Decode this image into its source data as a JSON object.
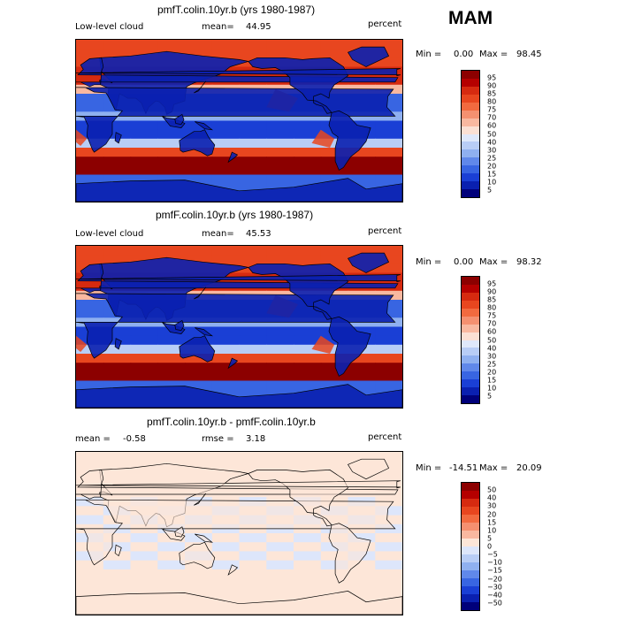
{
  "season": "MAM",
  "panels": [
    {
      "title": "pmfT.colin.10yr.b (yrs 1980-1987)",
      "left_label": "Low-level cloud",
      "mean_label": "mean=",
      "mean_value": "44.95",
      "units": "percent",
      "min_label": "Min =",
      "min_value": "0.00",
      "max_label": "Max =",
      "max_value": "98.45",
      "colorbar_ticks": [
        "95",
        "90",
        "85",
        "80",
        "75",
        "70",
        "60",
        "50",
        "40",
        "30",
        "25",
        "20",
        "15",
        "10",
        "5"
      ],
      "colorbar_colors": [
        "#8c0000",
        "#b50000",
        "#d62a10",
        "#e8461f",
        "#f26a3f",
        "#f59070",
        "#f9b8a0",
        "#fbe0d4",
        "#dfe8fb",
        "#b8cdf6",
        "#8fb0f0",
        "#6088ea",
        "#3865e2",
        "#1a3fd5",
        "#0a20b0",
        "#00007a"
      ],
      "kind": "clouds"
    },
    {
      "title": "pmfF.colin.10yr.b (yrs 1980-1987)",
      "left_label": "Low-level cloud",
      "mean_label": "mean=",
      "mean_value": "45.53",
      "units": "percent",
      "min_label": "Min =",
      "min_value": "0.00",
      "max_label": "Max =",
      "max_value": "98.32",
      "colorbar_ticks": [
        "95",
        "90",
        "85",
        "80",
        "75",
        "70",
        "60",
        "50",
        "40",
        "30",
        "25",
        "20",
        "15",
        "10",
        "5"
      ],
      "colorbar_colors": [
        "#8c0000",
        "#b50000",
        "#d62a10",
        "#e8461f",
        "#f26a3f",
        "#f59070",
        "#f9b8a0",
        "#fbe0d4",
        "#dfe8fb",
        "#b8cdf6",
        "#8fb0f0",
        "#6088ea",
        "#3865e2",
        "#1a3fd5",
        "#0a20b0",
        "#00007a"
      ],
      "kind": "clouds"
    },
    {
      "title": "pmfT.colin.10yr.b - pmfF.colin.10yr.b",
      "left_label": "mean =",
      "left_value": "-0.58",
      "mean_label": "rmse =",
      "mean_value": "3.18",
      "units": "percent",
      "min_label": "Min =",
      "min_value": "-14.51",
      "max_label": "Max =",
      "max_value": "20.09",
      "colorbar_ticks": [
        "50",
        "40",
        "30",
        "20",
        "15",
        "10",
        "5",
        "0",
        "−5",
        "−10",
        "−15",
        "−20",
        "−30",
        "−40",
        "−50"
      ],
      "colorbar_colors": [
        "#8c0000",
        "#b50000",
        "#d62a10",
        "#e8461f",
        "#f26a3f",
        "#f59070",
        "#f9b8a0",
        "#fde6d8",
        "#dde6fb",
        "#b8cdf6",
        "#8fb0f0",
        "#6088ea",
        "#3865e2",
        "#1a3fd5",
        "#0a20b0",
        "#00007a"
      ],
      "kind": "diff"
    }
  ]
}
